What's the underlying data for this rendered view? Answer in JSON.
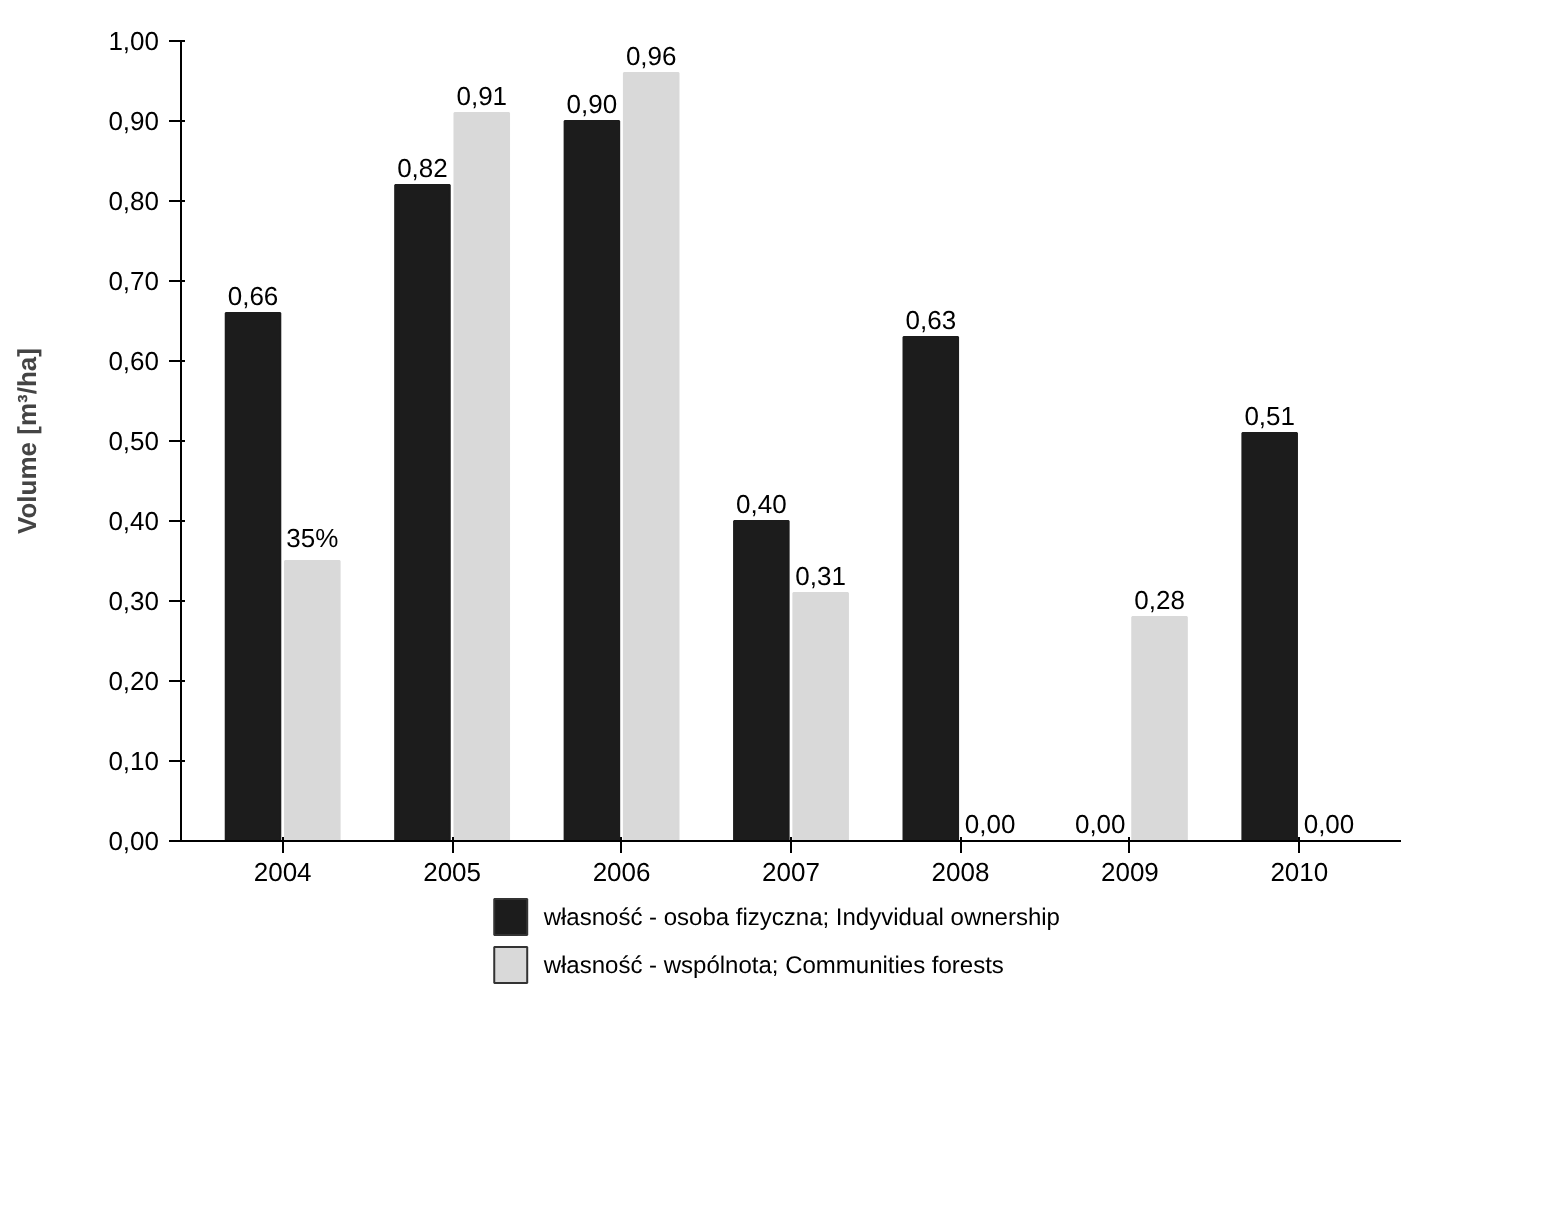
{
  "chart_data": {
    "type": "bar",
    "ylabel": "Volume [m³/ha]",
    "categories": [
      "2004",
      "2005",
      "2006",
      "2007",
      "2008",
      "2009",
      "2010"
    ],
    "series": [
      {
        "name": "własność - osoba fizyczna; Indyvidual ownership",
        "color": "#1c1c1c",
        "values": [
          0.66,
          0.82,
          0.9,
          0.4,
          0.63,
          0.0,
          0.51
        ],
        "value_labels": [
          "0,66",
          "0,82",
          "0,90",
          "0,40",
          "0,63",
          "0,00",
          "0,51"
        ]
      },
      {
        "name": "własność - wspólnota; Communities forests",
        "color": "#d9d9d9",
        "values": [
          0.35,
          0.91,
          0.96,
          0.31,
          0.0,
          0.28,
          0.0
        ],
        "value_labels": [
          "35%",
          "0,91",
          "0,96",
          "0,31",
          "0,00",
          "0,28",
          "0,00"
        ]
      }
    ],
    "ylim": [
      0,
      1
    ],
    "yticks": [
      {
        "value": 0,
        "label": "0,00"
      },
      {
        "value": 0.1,
        "label": "0,10"
      },
      {
        "value": 0.2,
        "label": "0,20"
      },
      {
        "value": 0.3,
        "label": "0,30"
      },
      {
        "value": 0.4,
        "label": "0,40"
      },
      {
        "value": 0.5,
        "label": "0,50"
      },
      {
        "value": 0.6,
        "label": "0,60"
      },
      {
        "value": 0.7,
        "label": "0,70"
      },
      {
        "value": 0.8,
        "label": "0,80"
      },
      {
        "value": 0.9,
        "label": "0,90"
      },
      {
        "value": 1.0,
        "label": "1,00"
      }
    ],
    "grid": false,
    "legend": "bottom"
  }
}
